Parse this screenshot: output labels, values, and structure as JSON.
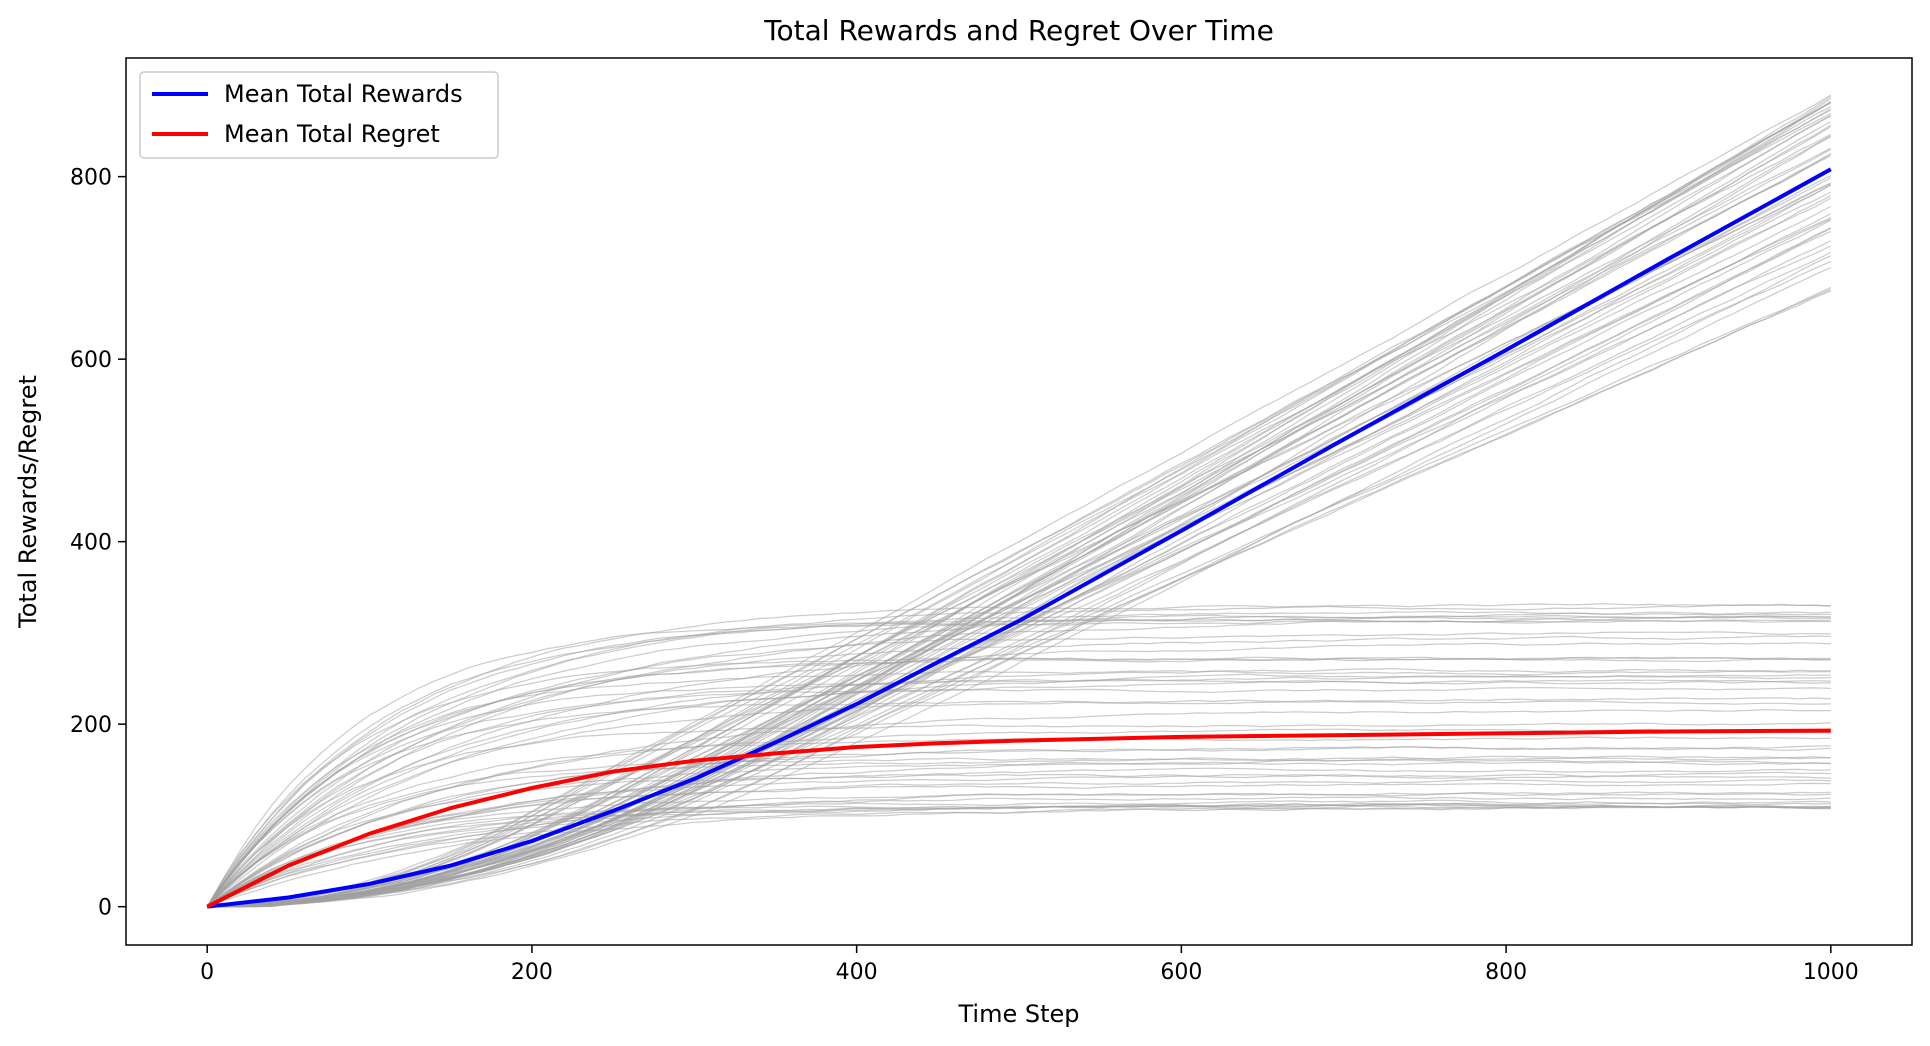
{
  "chart_data": {
    "type": "line",
    "title": "Total Rewards and Regret Over Time",
    "xlabel": "Time Step",
    "ylabel": "Total Rewards/Regret",
    "xlim": [
      -50,
      1050
    ],
    "ylim": [
      -42,
      930
    ],
    "xticks": [
      0,
      200,
      400,
      600,
      800,
      1000
    ],
    "yticks": [
      0,
      200,
      400,
      600,
      800
    ],
    "grid": false,
    "legend_position": "top-left",
    "colors": {
      "mean_rewards": "#0000ff",
      "mean_regret": "#ff0000",
      "runs": "#a0a0a0"
    },
    "series": [
      {
        "name": "Mean Total Rewards",
        "color": "#0000ff",
        "x": [
          0,
          50,
          100,
          150,
          200,
          250,
          300,
          350,
          400,
          450,
          500,
          600,
          700,
          800,
          900,
          1000
        ],
        "y": [
          0,
          10,
          25,
          45,
          72,
          105,
          140,
          180,
          222,
          268,
          313,
          412,
          512,
          610,
          710,
          808
        ]
      },
      {
        "name": "Mean Total Regret",
        "color": "#ff0000",
        "x": [
          0,
          50,
          100,
          150,
          200,
          250,
          300,
          350,
          400,
          450,
          500,
          600,
          700,
          800,
          900,
          1000
        ],
        "y": [
          0,
          45,
          80,
          108,
          130,
          148,
          160,
          168,
          175,
          179,
          182,
          186,
          188,
          190,
          192,
          193
        ]
      }
    ],
    "individual_runs": {
      "count": 50,
      "description_reward_end_range": [
        660,
        890
      ],
      "description_regret_end_range": [
        110,
        340
      ]
    }
  }
}
